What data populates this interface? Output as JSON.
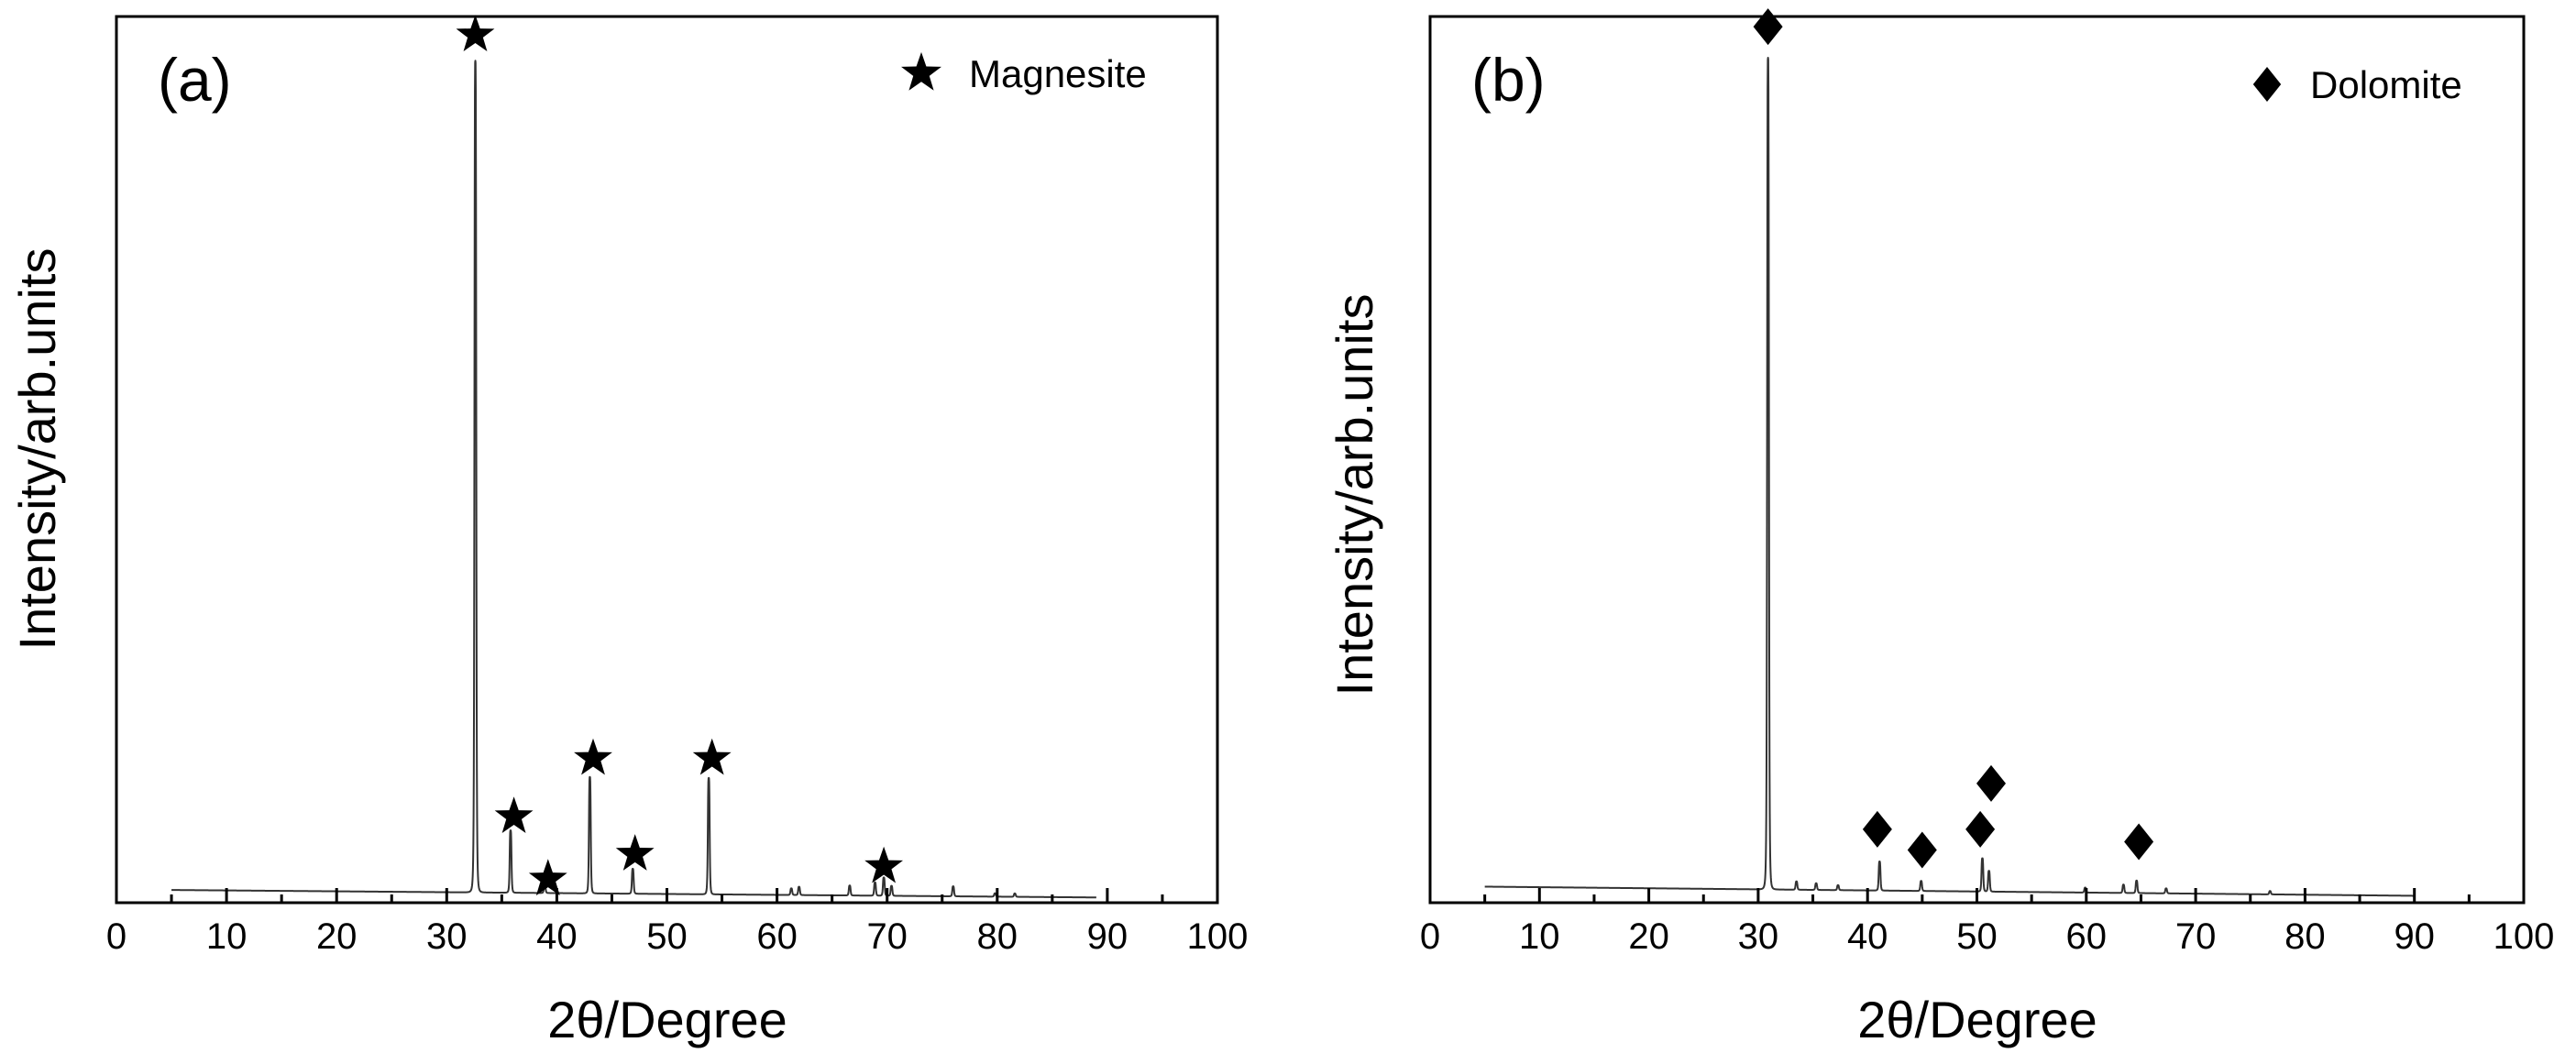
{
  "chart_data": [
    {
      "type": "line",
      "panel_label": "(a)",
      "xlabel": "2θ/Degree",
      "ylabel": "Intensity/arb.units",
      "xlim": [
        0,
        100
      ],
      "ylim": [
        0,
        1.06
      ],
      "xticks": [
        0,
        10,
        20,
        30,
        40,
        50,
        60,
        70,
        80,
        90,
        100
      ],
      "yticks": [],
      "legend": {
        "position": "top-right",
        "label": "Magnesite",
        "marker": "star"
      },
      "series": [
        {
          "name": "Magnesite XRD pattern",
          "color": "#333333",
          "baseline_start": 0.012,
          "baseline_end": 0.003,
          "range": [
            5,
            89
          ],
          "peaks": [
            {
              "x": 32.6,
              "y": 1.0
            },
            {
              "x": 35.8,
              "y": 0.075
            },
            {
              "x": 38.9,
              "y": 0.01
            },
            {
              "x": 43.0,
              "y": 0.14
            },
            {
              "x": 46.9,
              "y": 0.03
            },
            {
              "x": 53.8,
              "y": 0.14
            },
            {
              "x": 61.3,
              "y": 0.008
            },
            {
              "x": 62.0,
              "y": 0.01
            },
            {
              "x": 66.6,
              "y": 0.012
            },
            {
              "x": 68.9,
              "y": 0.016
            },
            {
              "x": 69.7,
              "y": 0.022
            },
            {
              "x": 70.4,
              "y": 0.012
            },
            {
              "x": 76.0,
              "y": 0.012
            },
            {
              "x": 79.8,
              "y": 0.004
            },
            {
              "x": 81.6,
              "y": 0.004
            }
          ]
        }
      ],
      "markers": [
        {
          "x": 32.6,
          "y": 1.04
        },
        {
          "x": 36.1,
          "y": 0.1
        },
        {
          "x": 39.2,
          "y": 0.025
        },
        {
          "x": 43.3,
          "y": 0.17
        },
        {
          "x": 47.1,
          "y": 0.055
        },
        {
          "x": 54.1,
          "y": 0.17
        },
        {
          "x": 69.7,
          "y": 0.04
        }
      ]
    },
    {
      "type": "line",
      "panel_label": "(b)",
      "xlabel": "2θ/Degree",
      "ylabel": "Intensity/arb.units",
      "xlim": [
        0,
        100
      ],
      "ylim": [
        0,
        1.06
      ],
      "xticks": [
        0,
        10,
        20,
        30,
        40,
        50,
        60,
        70,
        80,
        90,
        100
      ],
      "yticks": [],
      "legend": {
        "position": "top-right",
        "label": "Dolomite",
        "marker": "diamond"
      },
      "series": [
        {
          "name": "Dolomite XRD pattern",
          "color": "#333333",
          "baseline_start": 0.016,
          "baseline_end": 0.005,
          "range": [
            5,
            90
          ],
          "peaks": [
            {
              "x": 30.9,
              "y": 1.0
            },
            {
              "x": 33.5,
              "y": 0.01
            },
            {
              "x": 35.3,
              "y": 0.008
            },
            {
              "x": 37.3,
              "y": 0.006
            },
            {
              "x": 41.1,
              "y": 0.035
            },
            {
              "x": 44.9,
              "y": 0.012
            },
            {
              "x": 50.5,
              "y": 0.04
            },
            {
              "x": 51.1,
              "y": 0.025
            },
            {
              "x": 59.9,
              "y": 0.006
            },
            {
              "x": 63.4,
              "y": 0.01
            },
            {
              "x": 64.6,
              "y": 0.015
            },
            {
              "x": 67.3,
              "y": 0.006
            },
            {
              "x": 76.8,
              "y": 0.004
            }
          ]
        }
      ],
      "markers": [
        {
          "x": 30.9,
          "y": 1.05
        },
        {
          "x": 40.9,
          "y": 0.085
        },
        {
          "x": 45.0,
          "y": 0.06
        },
        {
          "x": 50.3,
          "y": 0.085
        },
        {
          "x": 51.3,
          "y": 0.14
        },
        {
          "x": 64.8,
          "y": 0.07
        }
      ]
    }
  ]
}
